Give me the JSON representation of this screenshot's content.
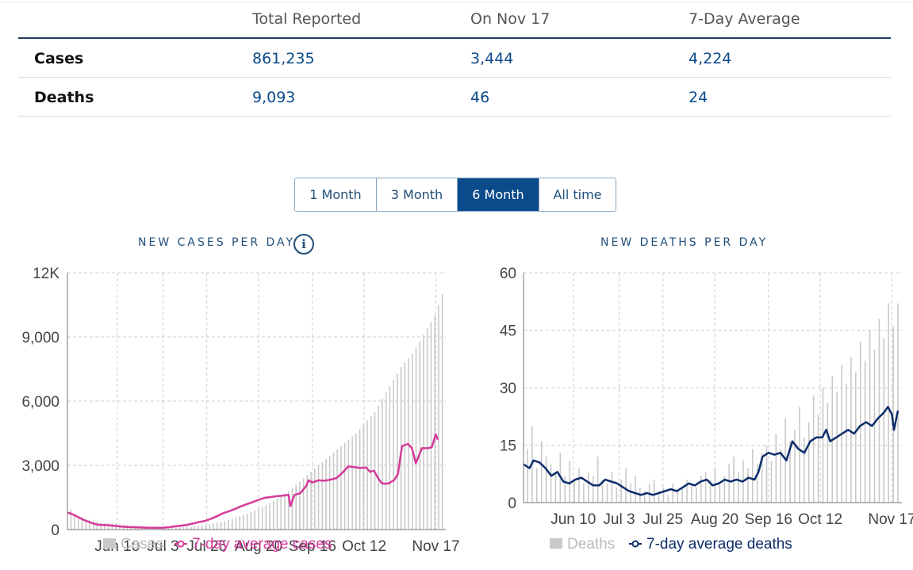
{
  "stats": {
    "headers": [
      "Total Reported",
      "On Nov 17",
      "7-Day Average"
    ],
    "rows": [
      {
        "label": "Cases",
        "total": "861,235",
        "on_day": "3,444",
        "avg": "4,224"
      },
      {
        "label": "Deaths",
        "total": "9,093",
        "on_day": "46",
        "avg": "24"
      }
    ]
  },
  "range_buttons": [
    {
      "label": "1 Month",
      "active": false
    },
    {
      "label": "3 Month",
      "active": false
    },
    {
      "label": "6 Month",
      "active": true
    },
    {
      "label": "All time",
      "active": false
    }
  ],
  "icons": {
    "info": "info-icon"
  },
  "colors": {
    "cases_line": "#d6399b",
    "deaths_line": "#0d2d6b",
    "bars": "#c9c9c9",
    "accent": "#0b4a8b"
  },
  "chart_data": [
    {
      "type": "bar",
      "title": "NEW CASES PER DAY",
      "info_glyph": "i",
      "ylim": [
        0,
        12000
      ],
      "y_ticks": [
        0,
        3000,
        6000,
        9000,
        12000
      ],
      "y_tick_labels": [
        "0",
        "3,000",
        "6,000",
        "9,000",
        "12K"
      ],
      "x_tick_labels": [
        "Jun 10",
        "Jul 3",
        "Jul 25",
        "Aug 20",
        "Sep 16",
        "Oct 12",
        "Nov 17"
      ],
      "x_tick_days": [
        25,
        48,
        70,
        96,
        123,
        149,
        185
      ],
      "x_range_days": [
        0,
        190
      ],
      "legend": {
        "bars": "Cases",
        "line": "7-day average cases",
        "position": "bottom"
      },
      "bar_series_name": "Cases",
      "line_series_name": "7-day average cases",
      "avg_points": [
        [
          0,
          800
        ],
        [
          3,
          700
        ],
        [
          6,
          550
        ],
        [
          9,
          420
        ],
        [
          12,
          320
        ],
        [
          15,
          230
        ],
        [
          18,
          210
        ],
        [
          21,
          200
        ],
        [
          24,
          170
        ],
        [
          27,
          140
        ],
        [
          30,
          120
        ],
        [
          33,
          110
        ],
        [
          36,
          100
        ],
        [
          39,
          90
        ],
        [
          42,
          80
        ],
        [
          45,
          80
        ],
        [
          48,
          90
        ],
        [
          51,
          110
        ],
        [
          54,
          150
        ],
        [
          57,
          180
        ],
        [
          60,
          220
        ],
        [
          63,
          280
        ],
        [
          66,
          350
        ],
        [
          69,
          400
        ],
        [
          72,
          500
        ],
        [
          75,
          620
        ],
        [
          78,
          760
        ],
        [
          81,
          850
        ],
        [
          84,
          960
        ],
        [
          87,
          1080
        ],
        [
          90,
          1180
        ],
        [
          93,
          1280
        ],
        [
          96,
          1390
        ],
        [
          99,
          1480
        ],
        [
          102,
          1520
        ],
        [
          105,
          1560
        ],
        [
          108,
          1580
        ],
        [
          111,
          1620
        ],
        [
          112,
          1100
        ],
        [
          114,
          1620
        ],
        [
          117,
          1700
        ],
        [
          120,
          2050
        ],
        [
          121,
          2300
        ],
        [
          123,
          2200
        ],
        [
          126,
          2300
        ],
        [
          129,
          2280
        ],
        [
          132,
          2330
        ],
        [
          135,
          2400
        ],
        [
          138,
          2650
        ],
        [
          141,
          2950
        ],
        [
          144,
          2920
        ],
        [
          147,
          2880
        ],
        [
          150,
          2900
        ],
        [
          152,
          2700
        ],
        [
          154,
          2750
        ],
        [
          156,
          2400
        ],
        [
          158,
          2150
        ],
        [
          161,
          2150
        ],
        [
          164,
          2300
        ],
        [
          166,
          2600
        ],
        [
          168,
          3900
        ],
        [
          171,
          4000
        ],
        [
          173,
          3800
        ],
        [
          175,
          3100
        ],
        [
          178,
          3800
        ],
        [
          181,
          3800
        ],
        [
          183,
          3850
        ],
        [
          185,
          4450
        ],
        [
          186,
          4200
        ]
      ],
      "bar_values": [
        950,
        700,
        640,
        580,
        500,
        460,
        420,
        380,
        330,
        300,
        300,
        290,
        270,
        240,
        230,
        220,
        200,
        180,
        170,
        150,
        150,
        140,
        140,
        130,
        120,
        120,
        110,
        110,
        100,
        100,
        110,
        120,
        130,
        150,
        170,
        190,
        220,
        250,
        280,
        320,
        360,
        400,
        450,
        500,
        560,
        620,
        680,
        740,
        820,
        900,
        980,
        1060,
        1150,
        1250,
        1350,
        1450,
        1560,
        1680,
        1800,
        1950,
        2100,
        2250,
        2400,
        2550,
        2700,
        2850,
        3000,
        3150,
        3300,
        3450,
        3600,
        3750,
        3900,
        4050,
        4200,
        4350,
        4500,
        4700,
        4900,
        5100,
        5300,
        5500,
        5800,
        6100,
        6400,
        6700,
        7000,
        7300,
        7600,
        7800,
        8000,
        8200,
        8500,
        8800,
        9100,
        9400,
        9700,
        10000,
        10500,
        11000
      ]
    },
    {
      "type": "bar",
      "title": "NEW DEATHS PER DAY",
      "ylim": [
        0,
        60
      ],
      "y_ticks": [
        0,
        15,
        30,
        45,
        60
      ],
      "y_tick_labels": [
        "0",
        "15",
        "30",
        "45",
        "60"
      ],
      "x_tick_labels": [
        "Jun 10",
        "Jul 3",
        "Jul 25",
        "Aug 20",
        "Sep 16",
        "Oct 12",
        "Nov 17"
      ],
      "x_tick_days": [
        25,
        48,
        70,
        96,
        123,
        149,
        185
      ],
      "x_range_days": [
        0,
        190
      ],
      "legend": {
        "bars": "Deaths",
        "line": "7-day average deaths",
        "position": "bottom"
      },
      "bar_series_name": "Deaths",
      "line_series_name": "7-day average deaths",
      "avg_points": [
        [
          0,
          10
        ],
        [
          3,
          9
        ],
        [
          5,
          11
        ],
        [
          8,
          10.5
        ],
        [
          11,
          9
        ],
        [
          14,
          7
        ],
        [
          17,
          8
        ],
        [
          20,
          5.5
        ],
        [
          23,
          5
        ],
        [
          26,
          6
        ],
        [
          29,
          6.5
        ],
        [
          32,
          5.5
        ],
        [
          35,
          4.5
        ],
        [
          38,
          4.5
        ],
        [
          41,
          6
        ],
        [
          44,
          5.5
        ],
        [
          47,
          5
        ],
        [
          50,
          4
        ],
        [
          53,
          3
        ],
        [
          56,
          2.5
        ],
        [
          59,
          2
        ],
        [
          62,
          2.5
        ],
        [
          65,
          2
        ],
        [
          68,
          2.5
        ],
        [
          71,
          3
        ],
        [
          74,
          3.5
        ],
        [
          77,
          3
        ],
        [
          80,
          4
        ],
        [
          83,
          5
        ],
        [
          86,
          4.5
        ],
        [
          89,
          5.5
        ],
        [
          92,
          6
        ],
        [
          95,
          4.5
        ],
        [
          98,
          5
        ],
        [
          101,
          6
        ],
        [
          104,
          5.5
        ],
        [
          107,
          6
        ],
        [
          110,
          5.5
        ],
        [
          113,
          6.5
        ],
        [
          116,
          6
        ],
        [
          118,
          8
        ],
        [
          120,
          12
        ],
        [
          123,
          13
        ],
        [
          126,
          12.5
        ],
        [
          129,
          13
        ],
        [
          132,
          11
        ],
        [
          135,
          16
        ],
        [
          138,
          14
        ],
        [
          141,
          13
        ],
        [
          144,
          16
        ],
        [
          147,
          17
        ],
        [
          150,
          17
        ],
        [
          152,
          19
        ],
        [
          154,
          16
        ],
        [
          157,
          17
        ],
        [
          160,
          18
        ],
        [
          163,
          19
        ],
        [
          166,
          18
        ],
        [
          169,
          20
        ],
        [
          172,
          21
        ],
        [
          175,
          20
        ],
        [
          178,
          22
        ],
        [
          181,
          23.5
        ],
        [
          183,
          25
        ],
        [
          185,
          23
        ],
        [
          186,
          19
        ],
        [
          188,
          24
        ]
      ],
      "bar_values": [
        14,
        20,
        9,
        16,
        12,
        10,
        8,
        13,
        7,
        11,
        6,
        9,
        5,
        8,
        7,
        12,
        6,
        5,
        8,
        4,
        6,
        9,
        5,
        7,
        4,
        3,
        5,
        6,
        3,
        4,
        2,
        5,
        3,
        4,
        6,
        5,
        4,
        7,
        8,
        6,
        9,
        5,
        7,
        10,
        12,
        8,
        11,
        9,
        14,
        10,
        13,
        15,
        11,
        18,
        14,
        22,
        16,
        19,
        25,
        17,
        21,
        28,
        23,
        30,
        26,
        33,
        29,
        36,
        31,
        38,
        34,
        42,
        37,
        45,
        40,
        48,
        43,
        52,
        46,
        52
      ]
    }
  ]
}
